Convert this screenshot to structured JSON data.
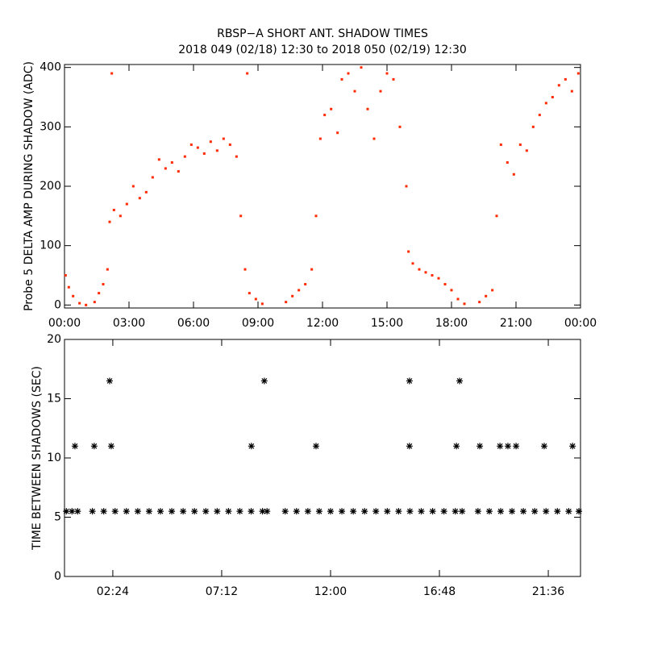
{
  "chart_data": [
    {
      "type": "scatter",
      "title": "RBSP−A SHORT ANT. SHADOW TIMES",
      "subtitle": "2018 049 (02/18) 12:30 to 2018 050 (02/19) 12:30",
      "y_label": "Probe 5 DELTA AMP DURING SHADOW (ADC)",
      "color": "#ff2a00",
      "xlim": [
        0,
        24
      ],
      "ylim": [
        -5,
        405
      ],
      "xticks": [
        {
          "value": 0,
          "label": "00:00"
        },
        {
          "value": 3,
          "label": "03:00"
        },
        {
          "value": 6,
          "label": "06:00"
        },
        {
          "value": 9,
          "label": "09:00"
        },
        {
          "value": 12,
          "label": "12:00"
        },
        {
          "value": 15,
          "label": "15:00"
        },
        {
          "value": 18,
          "label": "18:00"
        },
        {
          "value": 21,
          "label": "21:00"
        },
        {
          "value": 24,
          "label": "00:00"
        }
      ],
      "yticks": [
        0,
        100,
        200,
        300,
        400
      ],
      "x": [
        0.05,
        0.2,
        0.4,
        0.7,
        1.0,
        1.4,
        1.6,
        1.8,
        2.0,
        2.1,
        2.3,
        2.6,
        2.9,
        3.2,
        3.5,
        3.8,
        4.1,
        4.4,
        4.7,
        5.0,
        5.3,
        5.6,
        5.9,
        6.2,
        6.5,
        6.8,
        7.1,
        7.4,
        7.7,
        8.0,
        8.2,
        8.4,
        8.6,
        8.9,
        9.2,
        10.3,
        10.6,
        10.9,
        11.2,
        11.5,
        11.7,
        11.9,
        12.1,
        12.4,
        12.7,
        12.9,
        13.2,
        13.5,
        13.8,
        14.1,
        14.4,
        14.7,
        15.0,
        15.3,
        15.6,
        15.9,
        16.0,
        16.2,
        16.5,
        16.8,
        17.1,
        17.4,
        17.7,
        18.0,
        18.3,
        18.6,
        19.3,
        19.6,
        19.9,
        20.1,
        20.3,
        20.6,
        20.9,
        21.2,
        21.5,
        21.8,
        22.1,
        22.4,
        22.7,
        23.0,
        23.3,
        23.6,
        23.9,
        2.2,
        8.5
      ],
      "values": [
        50,
        30,
        15,
        3,
        0,
        5,
        20,
        35,
        60,
        140,
        160,
        150,
        170,
        200,
        180,
        190,
        215,
        245,
        230,
        240,
        225,
        250,
        270,
        265,
        255,
        275,
        260,
        280,
        270,
        250,
        150,
        60,
        20,
        10,
        2,
        5,
        15,
        25,
        35,
        60,
        150,
        280,
        320,
        330,
        290,
        380,
        390,
        360,
        400,
        330,
        280,
        360,
        390,
        380,
        300,
        200,
        90,
        70,
        60,
        55,
        50,
        45,
        35,
        25,
        10,
        2,
        5,
        15,
        25,
        150,
        270,
        240,
        220,
        270,
        260,
        300,
        320,
        340,
        350,
        370,
        380,
        360,
        390,
        390,
        390
      ]
    },
    {
      "type": "asterisk",
      "y_label": "TIME BETWEEN SHADOWS (SEC)",
      "color": "#000000",
      "xlim": [
        0.27,
        23.02
      ],
      "ylim": [
        0,
        20
      ],
      "xticks": [
        {
          "value": 2.4,
          "label": "02:24"
        },
        {
          "value": 7.2,
          "label": "07:12"
        },
        {
          "value": 12,
          "label": "12:00"
        },
        {
          "value": 16.8,
          "label": "16:48"
        },
        {
          "value": 21.6,
          "label": "21:36"
        }
      ],
      "yticks": [
        0,
        5,
        10,
        15,
        20
      ],
      "x": [
        0.35,
        0.6,
        0.85,
        1.5,
        2.0,
        2.5,
        3.0,
        3.5,
        4.0,
        4.5,
        5.0,
        5.5,
        6.0,
        6.5,
        7.0,
        7.5,
        8.0,
        8.5,
        9.0,
        9.2,
        10.0,
        10.5,
        11.0,
        11.5,
        12.0,
        12.5,
        13.0,
        13.5,
        14.0,
        14.5,
        15.0,
        15.5,
        16.0,
        16.5,
        17.0,
        17.5,
        17.8,
        18.5,
        19.0,
        19.5,
        20.0,
        20.5,
        21.0,
        21.5,
        22.0,
        22.5,
        22.95,
        0.73,
        1.58,
        2.33,
        8.51,
        11.36,
        15.48,
        17.55,
        18.58,
        19.47,
        19.82,
        20.18,
        21.42,
        22.67,
        2.26,
        9.08,
        15.48,
        17.69
      ],
      "values": [
        5.5,
        5.5,
        5.5,
        5.5,
        5.5,
        5.5,
        5.5,
        5.5,
        5.5,
        5.5,
        5.5,
        5.5,
        5.5,
        5.5,
        5.5,
        5.5,
        5.5,
        5.5,
        5.5,
        5.5,
        5.5,
        5.5,
        5.5,
        5.5,
        5.5,
        5.5,
        5.5,
        5.5,
        5.5,
        5.5,
        5.5,
        5.5,
        5.5,
        5.5,
        5.5,
        5.5,
        5.5,
        5.5,
        5.5,
        5.5,
        5.5,
        5.5,
        5.5,
        5.5,
        5.5,
        5.5,
        5.5,
        11,
        11,
        11,
        11,
        11,
        11,
        11,
        11,
        11,
        11,
        11,
        11,
        11,
        16.5,
        16.5,
        16.5,
        16.5
      ]
    }
  ]
}
